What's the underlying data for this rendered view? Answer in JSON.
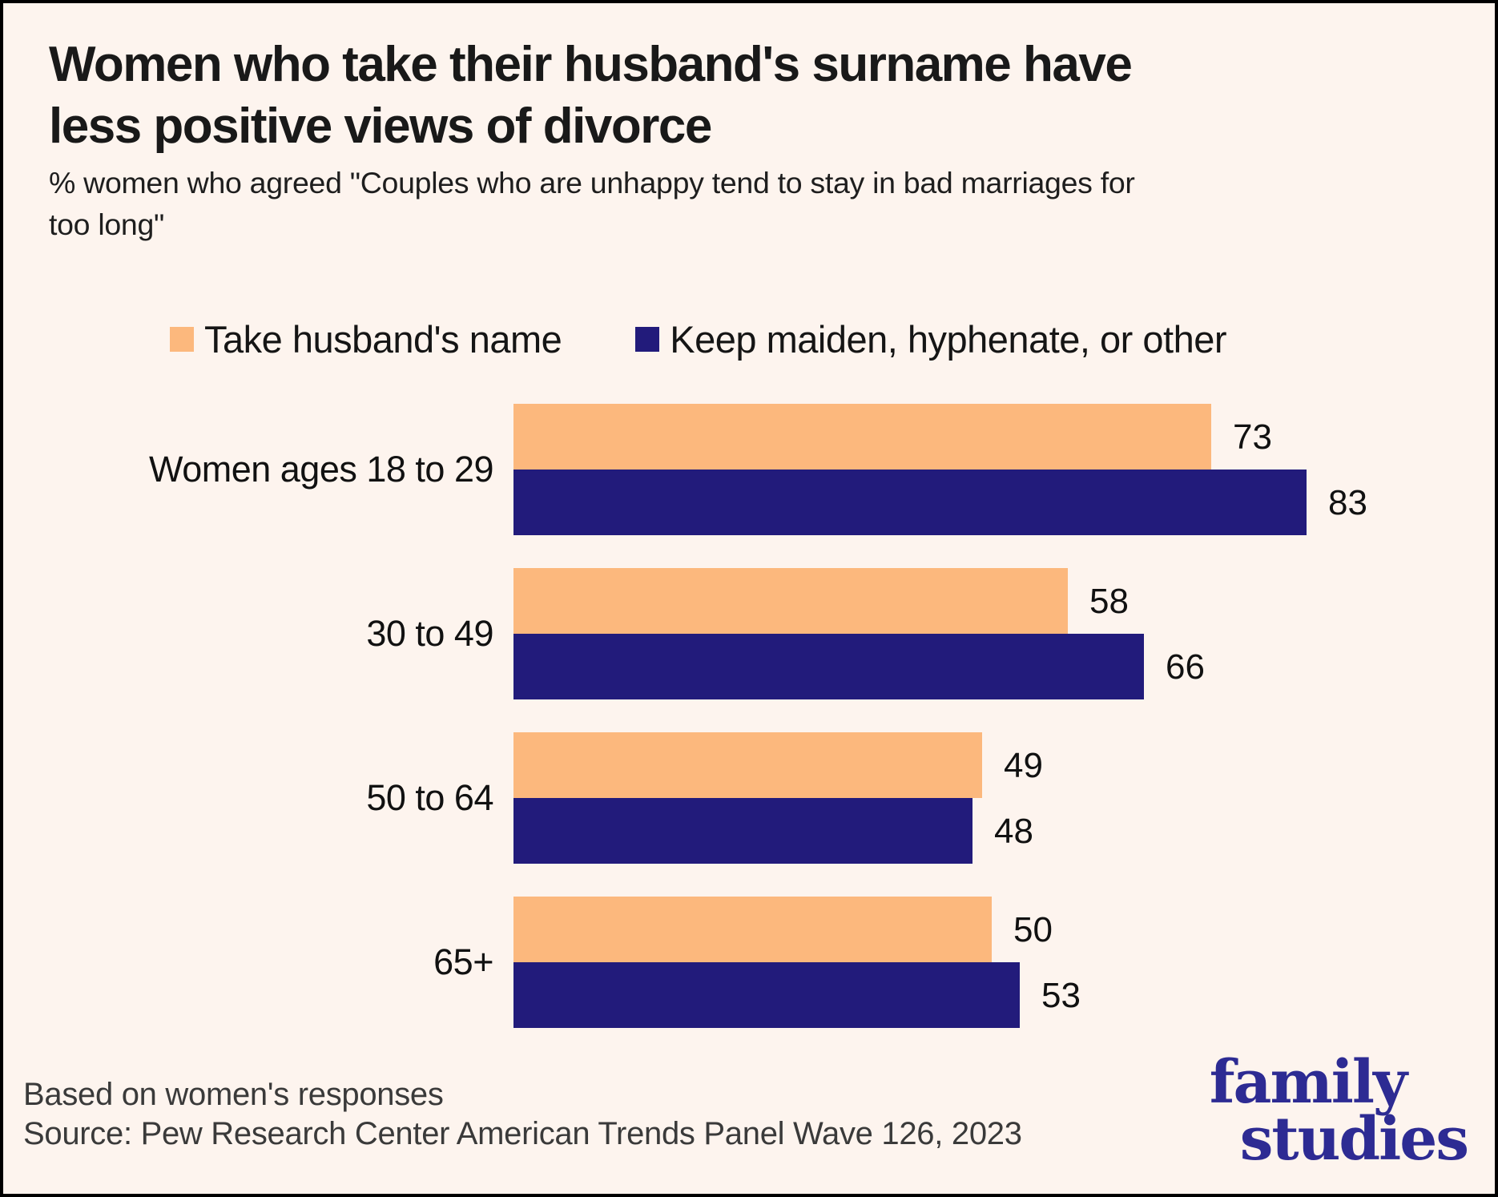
{
  "page": {
    "background": "#FDF4EE",
    "border_color": "#000000"
  },
  "header": {
    "title": "Women who take their husband's surname have less positive views of divorce",
    "title_lines": [
      "Women who take their husband's surname have",
      "less positive views of divorce"
    ],
    "subtitle": "% women who agreed \"Couples who are unhappy tend to stay in bad marriages for too long\"",
    "subtitle_lines": [
      "% women who agreed \"Couples who are unhappy tend to stay in bad marriages for",
      "too long\""
    ]
  },
  "legend": [
    {
      "label": "Take husband's name",
      "color": "#FCB87D"
    },
    {
      "label": "Keep maiden, hyphenate, or other",
      "color": "#221B7B"
    }
  ],
  "chart_data": {
    "type": "bar",
    "orientation": "horizontal",
    "categories": [
      "Women ages 18 to 29",
      "30 to 49",
      "50 to 64",
      "65+"
    ],
    "series": [
      {
        "name": "Take husband's name",
        "color": "#FCB87D",
        "values": [
          73,
          58,
          49,
          50
        ]
      },
      {
        "name": "Keep maiden, hyphenate, or other",
        "color": "#221B7B",
        "values": [
          83,
          66,
          48,
          53
        ]
      }
    ],
    "xlim": [
      0,
      100
    ],
    "value_labels_shown": true,
    "axes_hidden": true,
    "gridlines": false,
    "legend_position": "top"
  },
  "footer": {
    "note": "Based on women's responses",
    "source": "Source: Pew Research Center American Trends Panel Wave 126, 2023"
  },
  "logo": {
    "line1": "family",
    "line2": "studies",
    "color": "#2D2B93"
  }
}
